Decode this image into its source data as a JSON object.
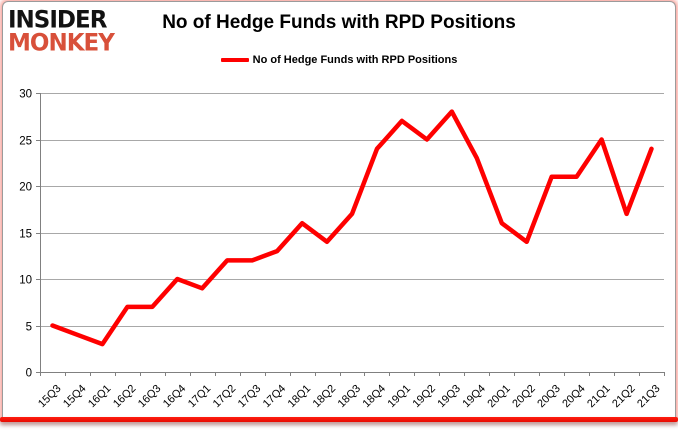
{
  "logo": {
    "line1": "INSIDER",
    "line2": "MONKEY",
    "line1_color": "#121212",
    "line2_color": "#d8503a"
  },
  "header": {
    "title": "No of Hedge Funds with RPD Positions"
  },
  "legend": {
    "label": "No of Hedge Funds with RPD Positions",
    "line_color": "#fe0000"
  },
  "chart_data": {
    "type": "line",
    "title": "No of Hedge Funds with RPD Positions",
    "categories": [
      "15Q3",
      "15Q4",
      "16Q1",
      "16Q2",
      "16Q3",
      "16Q4",
      "17Q1",
      "17Q2",
      "17Q3",
      "17Q4",
      "18Q1",
      "18Q2",
      "18Q3",
      "18Q4",
      "19Q1",
      "19Q2",
      "19Q3",
      "19Q4",
      "20Q1",
      "20Q2",
      "20Q3",
      "20Q4",
      "21Q1",
      "21Q2",
      "21Q3"
    ],
    "series": [
      {
        "name": "No of Hedge Funds with RPD Positions",
        "color": "#fe0000",
        "values": [
          5,
          4,
          3,
          7,
          7,
          10,
          9,
          12,
          12,
          13,
          16,
          14,
          17,
          24,
          27,
          25,
          28,
          23,
          16,
          14,
          21,
          21,
          25,
          17,
          24
        ]
      }
    ],
    "xlabel": "",
    "ylabel": "",
    "ylim": [
      0,
      30
    ],
    "yticks": [
      0,
      5,
      10,
      15,
      20,
      25,
      30
    ],
    "grid": true,
    "legend_position": "top",
    "gridline_color": "#a8a8a8",
    "axis_color": "#808080",
    "tick_label_color": "#000000"
  }
}
